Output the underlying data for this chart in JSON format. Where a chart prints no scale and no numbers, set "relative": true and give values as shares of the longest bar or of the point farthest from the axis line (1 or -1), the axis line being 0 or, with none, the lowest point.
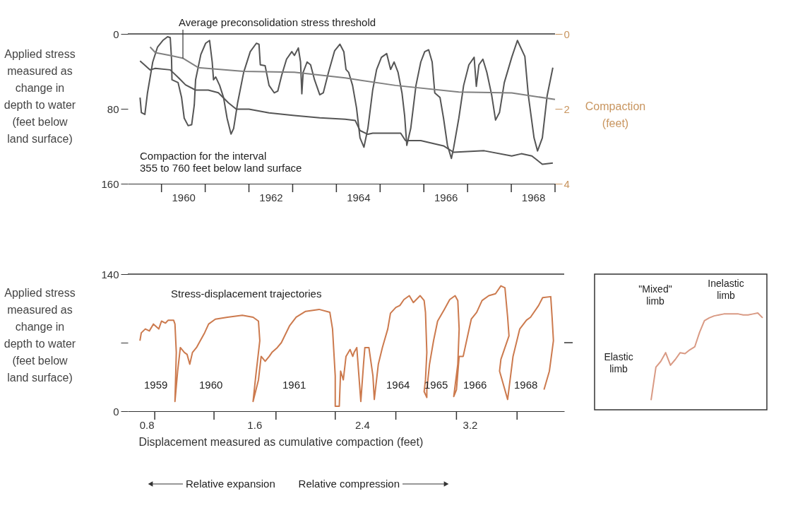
{
  "chart_data": [
    {
      "type": "line",
      "ylabel": "Applied stress\nmeasured as\nchange in\ndepth to water\n(feet below\nland surface)",
      "y2label": "Compaction\n(feet)",
      "xlim": [
        1959.23,
        1969.0
      ],
      "xticks": [
        {
          "value": 1960,
          "label": null
        },
        {
          "value": 1960.5,
          "label": "1960"
        },
        {
          "value": 1961,
          "label": null
        },
        {
          "value": 1962,
          "label": null
        },
        {
          "value": 1962.5,
          "label": "1962"
        },
        {
          "value": 1963,
          "label": null
        },
        {
          "value": 1964,
          "label": null
        },
        {
          "value": 1964.5,
          "label": "1964"
        },
        {
          "value": 1965,
          "label": null
        },
        {
          "value": 1966,
          "label": null
        },
        {
          "value": 1966.5,
          "label": "1966"
        },
        {
          "value": 1967,
          "label": null
        },
        {
          "value": 1968,
          "label": null
        },
        {
          "value": 1968.5,
          "label": "1968"
        },
        {
          "value": 1969,
          "label": null
        }
      ],
      "ylim": [
        160,
        0
      ],
      "yticks": [
        0,
        80,
        160
      ],
      "y2lim": [
        4,
        0
      ],
      "y2ticks": [
        0,
        2,
        4
      ],
      "series": [
        {
          "color": "#555555",
          "x": [
            1959.51,
            1959.54,
            1959.62,
            1959.68,
            1959.8,
            1959.91,
            1960.03,
            1960.14,
            1960.2,
            1960.23,
            1960.24,
            1960.38,
            1960.46,
            1960.52,
            1960.61,
            1960.69,
            1960.75,
            1960.78,
            1960.9,
            1961.01,
            1961.1,
            1961.16,
            1961.19,
            1961.24,
            1961.33,
            1961.42,
            1961.5,
            1961.59,
            1961.65,
            1961.74,
            1961.88,
            1962.03,
            1962.17,
            1962.23,
            1962.26,
            1962.37,
            1962.46,
            1962.58,
            1962.66,
            1962.75,
            1962.86,
            1962.98,
            1963.04,
            1963.13,
            1963.18,
            1963.21,
            1963.24,
            1963.33,
            1963.41,
            1963.5,
            1963.62,
            1963.7,
            1963.82,
            1963.96,
            1964.08,
            1964.17,
            1964.22,
            1964.28,
            1964.37,
            1964.46,
            1964.54,
            1964.63,
            1964.72,
            1964.83,
            1964.92,
            1965.03,
            1965.15,
            1965.24,
            1965.32,
            1965.41,
            1965.5,
            1965.56,
            1965.61,
            1965.7,
            1965.82,
            1965.93,
            1966.02,
            1966.11,
            1966.19,
            1966.25,
            1966.37,
            1966.45,
            1966.54,
            1966.63,
            1966.68,
            1966.8,
            1966.91,
            1967.03,
            1967.15,
            1967.2,
            1967.26,
            1967.35,
            1967.44,
            1967.55,
            1967.64,
            1967.73,
            1967.84,
            1968.01,
            1968.14,
            1968.31,
            1968.39,
            1968.52,
            1968.6,
            1968.71,
            1968.82,
            1968.95
          ],
          "values": [
            68,
            84,
            86,
            63,
            30,
            14,
            7,
            3,
            4,
            27,
            49,
            52,
            68,
            90,
            98,
            97,
            76,
            49,
            22,
            10,
            7,
            30,
            49,
            46,
            55,
            68,
            90,
            107,
            101,
            74,
            41,
            19,
            10,
            11,
            33,
            34,
            55,
            63,
            61,
            44,
            27,
            19,
            23,
            15,
            30,
            64,
            41,
            30,
            33,
            49,
            65,
            63,
            41,
            18,
            11,
            19,
            38,
            41,
            55,
            79,
            111,
            121,
            101,
            60,
            38,
            25,
            21,
            38,
            30,
            41,
            63,
            87,
            119,
            101,
            55,
            30,
            19,
            17,
            30,
            63,
            68,
            90,
            119,
            133,
            122,
            90,
            55,
            33,
            25,
            56,
            33,
            27,
            41,
            65,
            92,
            84,
            52,
            25,
            7,
            24,
            66,
            111,
            125,
            111,
            66,
            36
          ]
        },
        {
          "color": "#555555",
          "axis": "y2",
          "x": [
            1959.51,
            1959.74,
            1959.86,
            1960.2,
            1960.38,
            1960.55,
            1960.78,
            1961.07,
            1961.3,
            1961.53,
            1961.71,
            1962.0,
            1962.46,
            1963.04,
            1963.62,
            1964.2,
            1964.43,
            1964.54,
            1964.72,
            1964.83,
            1965.47,
            1965.58,
            1965.93,
            1966.45,
            1966.68,
            1967.38,
            1968.01,
            1968.23,
            1968.47,
            1968.71,
            1968.95
          ],
          "values": [
            0.72,
            0.96,
            0.92,
            0.96,
            1.16,
            1.36,
            1.5,
            1.5,
            1.57,
            1.84,
            2.01,
            2.01,
            2.11,
            2.18,
            2.24,
            2.28,
            2.31,
            2.58,
            2.68,
            2.65,
            2.65,
            2.85,
            2.85,
            2.99,
            3.16,
            3.12,
            3.26,
            3.2,
            3.26,
            3.48,
            3.45
          ]
        },
        {
          "color": "#808080",
          "x": [
            1959.74,
            1959.86,
            1960.2,
            1960.49,
            1960.84,
            1961.88,
            1963.04,
            1964.2,
            1965.35,
            1966.8,
            1968.01,
            1969.0
          ],
          "values": [
            14,
            20,
            23,
            26,
            36,
            40,
            41,
            47,
            55,
            62,
            63,
            70
          ]
        }
      ],
      "annotations": [
        {
          "text": "Average preconsolidation stress threshold",
          "x": 1960.49,
          "y": 26
        },
        "Compaction for the interval\n355 to 760 feet below land surface"
      ]
    },
    {
      "type": "line",
      "xlabel": "Displacement measured as cumulative compaction (feet)",
      "ylabel": "Applied stress\nmeasured as\nchange in\ndepth to water\n(feet below\nland surface)",
      "xlim": [
        0.66,
        3.9
      ],
      "xticks": [
        0.8,
        {
          "value": 0.86,
          "label": null
        },
        {
          "value": 1.3,
          "label": null
        },
        1.6,
        {
          "value": 1.76,
          "label": null
        },
        {
          "value": 2.2,
          "label": null
        },
        2.4,
        {
          "value": 2.65,
          "label": null
        },
        {
          "value": 3.1,
          "label": null
        },
        3.2,
        {
          "value": 3.55,
          "label": null
        }
      ],
      "ylim": [
        0,
        140
      ],
      "yticks": [
        0,
        {
          "value": 70,
          "label": null
        },
        140
      ],
      "series": [
        {
          "color": "#cc7a4e",
          "x": [
            0.75,
            0.76,
            0.79,
            0.82,
            0.85,
            0.89,
            0.91,
            0.94,
            0.96,
            1.0,
            1.01,
            1.02,
            1.01,
            1.03,
            1.05,
            1.08,
            1.1,
            1.12,
            1.14,
            1.17,
            1.19,
            1.23,
            1.26,
            1.31,
            1.4,
            1.51,
            1.59,
            1.63,
            1.64,
            1.61,
            1.59,
            1.63,
            1.65,
            1.68,
            1.71,
            1.73,
            1.77,
            1.8,
            1.86,
            1.91,
            1.98,
            2.08,
            2.16,
            2.18,
            2.2,
            2.2,
            2.23,
            2.24,
            2.26,
            2.28,
            2.31,
            2.33,
            2.34,
            2.36,
            2.39,
            2.41,
            2.42,
            2.45,
            2.48,
            2.49,
            2.52,
            2.55,
            2.59,
            2.61,
            2.65,
            2.68,
            2.71,
            2.75,
            2.78,
            2.83,
            2.86,
            2.87,
            2.88,
            2.87,
            2.86,
            2.88,
            2.88,
            2.9,
            2.93,
            2.96,
            3.01,
            3.05,
            3.09,
            3.11,
            3.12,
            3.11,
            3.08,
            3.1,
            3.12,
            3.15,
            3.18,
            3.21,
            3.25,
            3.29,
            3.34,
            3.39,
            3.43,
            3.46,
            3.48,
            3.49,
            3.43,
            3.42,
            3.48,
            3.52,
            3.57,
            3.62,
            3.65,
            3.71,
            3.74,
            3.8,
            3.81,
            3.82,
            3.79,
            3.75
          ],
          "values": [
            72,
            80,
            84,
            82,
            89,
            84,
            92,
            90,
            93,
            93,
            89,
            60,
            10,
            41,
            65,
            60,
            58,
            48,
            60,
            65,
            70,
            80,
            89,
            94,
            96,
            98,
            96,
            92,
            72,
            36,
            10,
            32,
            56,
            51,
            56,
            60,
            65,
            70,
            87,
            96,
            102,
            104,
            101,
            84,
            36,
            5,
            5,
            41,
            32,
            56,
            63,
            56,
            60,
            65,
            10,
            48,
            65,
            65,
            36,
            12,
            48,
            65,
            84,
            100,
            106,
            108,
            114,
            118,
            111,
            118,
            113,
            101,
            60,
            32,
            20,
            14,
            22,
            48,
            72,
            92,
            104,
            114,
            118,
            113,
            84,
            48,
            15,
            22,
            56,
            56,
            75,
            94,
            101,
            113,
            118,
            120,
            128,
            126,
            96,
            77,
            53,
            41,
            12,
            56,
            84,
            93,
            96,
            108,
            116,
            117,
            96,
            72,
            41,
            22
          ]
        }
      ],
      "annotations": [
        "Stress-displacement trajectories",
        "1959",
        "1960",
        "1961",
        "1964",
        "1965",
        "1966",
        "1968",
        "Relative expansion",
        "Relative compression"
      ]
    },
    {
      "type": "line",
      "relative": true,
      "categories": [
        null,
        null,
        null,
        null,
        null,
        null,
        null,
        null,
        null,
        null,
        null,
        null,
        null,
        null,
        null,
        null,
        null,
        null,
        null,
        null,
        null,
        null,
        null,
        null
      ],
      "series": [
        {
          "color": "#d99a84",
          "values": [
            0.1,
            0.44,
            0.5,
            0.59,
            0.46,
            0.52,
            0.59,
            0.58,
            0.62,
            0.65,
            0.8,
            0.92,
            0.95,
            0.97,
            0.98,
            0.99,
            0.99,
            0.99,
            0.99,
            0.98,
            0.98,
            0.99,
            1.0,
            0.95
          ]
        }
      ],
      "annotations": [
        "\"Mixed\"\nlimb",
        "Inelastic\nlimb",
        "Elastic\nlimb"
      ]
    }
  ]
}
